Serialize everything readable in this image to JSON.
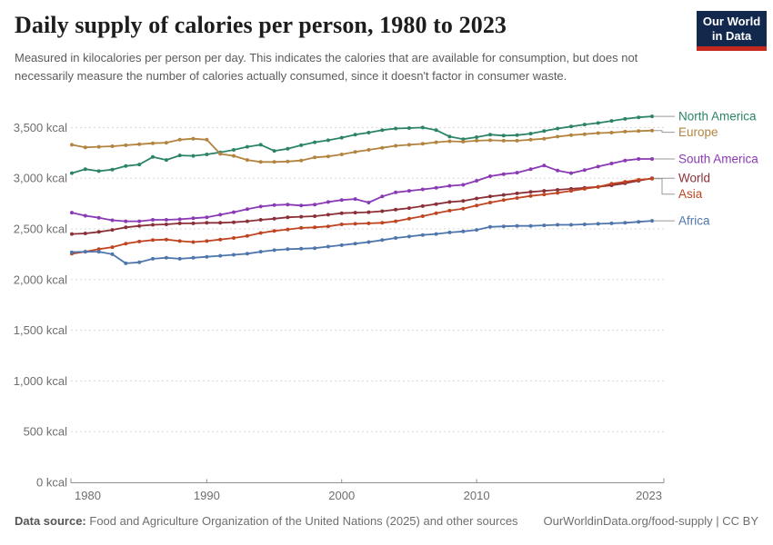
{
  "header": {
    "title": "Daily supply of calories per person, 1980 to 2023",
    "subtitle": "Measured in kilocalories per person per day. This indicates the calories that are available for consumption, but does not necessarily measure the number of calories actually consumed, since it doesn't factor in consumer waste."
  },
  "logo": {
    "line1": "Our World",
    "line2": "in Data",
    "bg_color": "#12294d",
    "accent_color": "#c5281c"
  },
  "chart_data": {
    "type": "line",
    "title": "Daily supply of calories per person, 1980 to 2023",
    "unit": "kcal",
    "xlim": [
      1980,
      2023
    ],
    "ylim": [
      0,
      3500
    ],
    "grid": true,
    "legend_position": "right",
    "x_ticks": [
      1980,
      1990,
      2000,
      2010,
      2023
    ],
    "y_ticks": [
      {
        "value": 0,
        "label": "0 kcal"
      },
      {
        "value": 500,
        "label": "500 kcal"
      },
      {
        "value": 1000,
        "label": "1,000 kcal"
      },
      {
        "value": 1500,
        "label": "1,500 kcal"
      },
      {
        "value": 2000,
        "label": "2,000 kcal"
      },
      {
        "value": 2500,
        "label": "2,500 kcal"
      },
      {
        "value": 3000,
        "label": "3,000 kcal"
      },
      {
        "value": 3500,
        "label": "3,500 kcal"
      }
    ],
    "x": [
      1980,
      1981,
      1982,
      1983,
      1984,
      1985,
      1986,
      1987,
      1988,
      1989,
      1990,
      1991,
      1992,
      1993,
      1994,
      1995,
      1996,
      1997,
      1998,
      1999,
      2000,
      2001,
      2002,
      2003,
      2004,
      2005,
      2006,
      2007,
      2008,
      2009,
      2010,
      2011,
      2012,
      2013,
      2014,
      2015,
      2016,
      2017,
      2018,
      2019,
      2020,
      2021,
      2022,
      2023
    ],
    "series": [
      {
        "name": "North America",
        "color": "#2c8465",
        "values": [
          3050,
          3090,
          3070,
          3085,
          3120,
          3135,
          3210,
          3180,
          3225,
          3220,
          3235,
          3255,
          3280,
          3310,
          3330,
          3270,
          3290,
          3325,
          3355,
          3375,
          3400,
          3430,
          3450,
          3475,
          3490,
          3495,
          3500,
          3475,
          3410,
          3385,
          3405,
          3430,
          3420,
          3425,
          3440,
          3465,
          3490,
          3510,
          3530,
          3545,
          3565,
          3585,
          3600,
          3610
        ]
      },
      {
        "name": "Europe",
        "color": "#b3843f",
        "values": [
          3330,
          3305,
          3310,
          3315,
          3325,
          3335,
          3345,
          3350,
          3380,
          3390,
          3380,
          3240,
          3220,
          3180,
          3160,
          3160,
          3165,
          3175,
          3205,
          3215,
          3235,
          3260,
          3280,
          3300,
          3320,
          3330,
          3340,
          3355,
          3365,
          3360,
          3370,
          3375,
          3370,
          3370,
          3380,
          3390,
          3410,
          3425,
          3435,
          3445,
          3450,
          3460,
          3465,
          3470
        ]
      },
      {
        "name": "South America",
        "color": "#8a3ab5",
        "values": [
          2660,
          2630,
          2610,
          2585,
          2575,
          2575,
          2590,
          2590,
          2595,
          2605,
          2615,
          2640,
          2665,
          2695,
          2720,
          2735,
          2740,
          2730,
          2740,
          2765,
          2785,
          2795,
          2760,
          2820,
          2860,
          2875,
          2890,
          2905,
          2925,
          2935,
          2975,
          3020,
          3040,
          3055,
          3090,
          3125,
          3075,
          3050,
          3080,
          3115,
          3145,
          3175,
          3190,
          3190
        ]
      },
      {
        "name": "World",
        "color": "#8b3039",
        "values": [
          2450,
          2455,
          2470,
          2490,
          2515,
          2530,
          2540,
          2545,
          2555,
          2555,
          2560,
          2560,
          2565,
          2575,
          2590,
          2600,
          2615,
          2620,
          2625,
          2640,
          2655,
          2660,
          2665,
          2675,
          2690,
          2705,
          2725,
          2745,
          2765,
          2775,
          2800,
          2820,
          2835,
          2850,
          2865,
          2875,
          2885,
          2895,
          2905,
          2915,
          2930,
          2950,
          2975,
          3000
        ]
      },
      {
        "name": "Asia",
        "color": "#bf4522",
        "values": [
          2255,
          2275,
          2300,
          2320,
          2355,
          2375,
          2390,
          2395,
          2380,
          2370,
          2380,
          2395,
          2410,
          2430,
          2460,
          2480,
          2495,
          2510,
          2515,
          2525,
          2545,
          2550,
          2555,
          2560,
          2575,
          2600,
          2625,
          2655,
          2680,
          2700,
          2730,
          2760,
          2785,
          2805,
          2825,
          2840,
          2855,
          2875,
          2895,
          2915,
          2945,
          2965,
          2985,
          2995
        ]
      },
      {
        "name": "Africa",
        "color": "#4f76ac",
        "values": [
          2270,
          2275,
          2275,
          2250,
          2160,
          2170,
          2205,
          2215,
          2205,
          2215,
          2225,
          2235,
          2245,
          2255,
          2275,
          2290,
          2300,
          2305,
          2310,
          2325,
          2340,
          2355,
          2370,
          2390,
          2410,
          2425,
          2440,
          2450,
          2465,
          2475,
          2490,
          2520,
          2525,
          2530,
          2530,
          2535,
          2540,
          2540,
          2545,
          2550,
          2555,
          2560,
          2570,
          2580
        ]
      }
    ]
  },
  "footer": {
    "datasource_label": "Data source:",
    "datasource_text": "Food and Agriculture Organization of the United Nations (2025) and other sources",
    "license_text": "OurWorldinData.org/food-supply | CC BY"
  }
}
